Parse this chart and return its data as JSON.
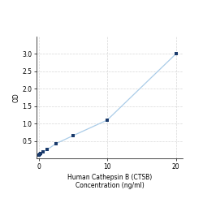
{
  "x": [
    0,
    0.156,
    0.313,
    0.625,
    1.25,
    2.5,
    5,
    10,
    20
  ],
  "y": [
    0.1,
    0.12,
    0.14,
    0.18,
    0.25,
    0.42,
    0.65,
    1.1,
    3.0
  ],
  "line_color": "#aacce8",
  "marker_color": "#1a3a6b",
  "marker_style": "s",
  "marker_size": 3.5,
  "xlabel_line1": "Human Cathepsin B (CTSB)",
  "xlabel_line2": "Concentration (ng/ml)",
  "ylabel": "OD",
  "xlim": [
    -0.3,
    21
  ],
  "ylim": [
    0,
    3.5
  ],
  "xticks": [
    0,
    10,
    20
  ],
  "yticks": [
    0.5,
    1.0,
    1.5,
    2.0,
    2.5,
    3.0
  ],
  "grid_color": "#d8d8d8",
  "background_color": "#ffffff",
  "label_fontsize": 5.5,
  "tick_fontsize": 5.5
}
